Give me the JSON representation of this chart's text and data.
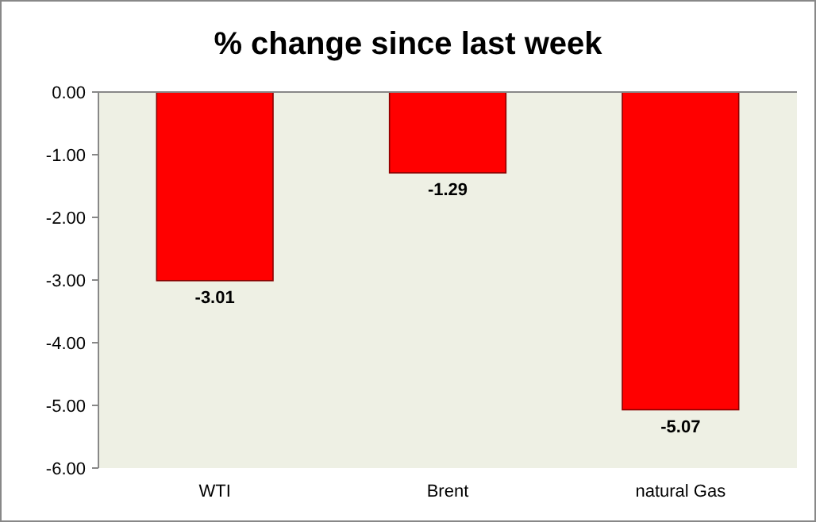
{
  "chart_data": {
    "type": "bar",
    "title": "% change since last week",
    "categories": [
      "WTI",
      "Brent",
      "natural Gas"
    ],
    "values": [
      -3.01,
      -1.29,
      -5.07
    ],
    "color": "#ff0000",
    "ylim": [
      -6,
      0
    ],
    "yticks": [
      {
        "value": 0,
        "label": "0.00"
      },
      {
        "value": -1,
        "label": "-1.00"
      },
      {
        "value": -2,
        "label": "-2.00"
      },
      {
        "value": -3,
        "label": "-3.00"
      },
      {
        "value": -4,
        "label": "-4.00"
      },
      {
        "value": -5,
        "label": "-5.00"
      },
      {
        "value": -6,
        "label": "-6.00"
      }
    ],
    "data_labels": true
  }
}
